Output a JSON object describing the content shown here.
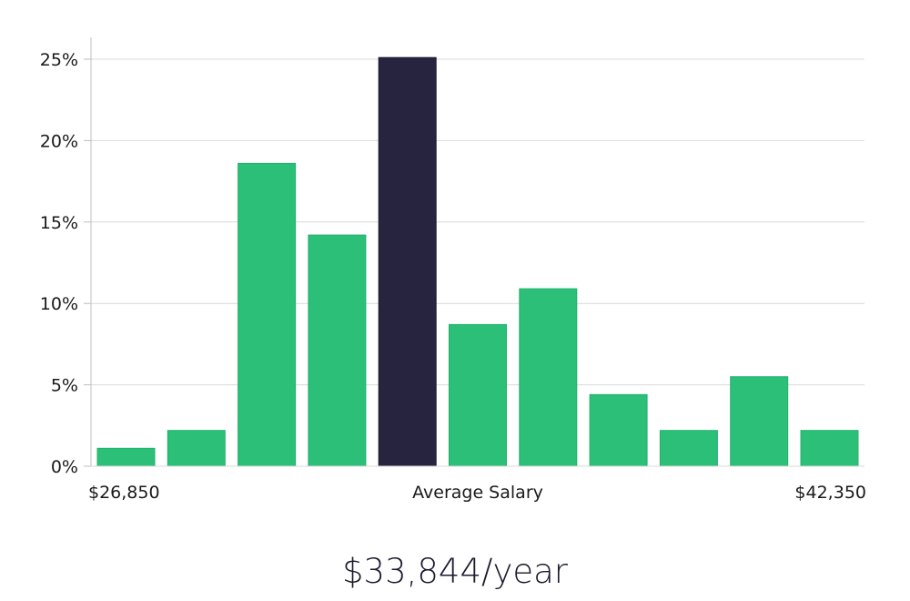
{
  "chart_data": {
    "type": "bar",
    "categories": [
      "1",
      "2",
      "3",
      "4",
      "5",
      "6",
      "7",
      "8",
      "9",
      "10",
      "11"
    ],
    "values": [
      1.1,
      2.2,
      18.6,
      14.2,
      25.1,
      8.7,
      10.9,
      4.4,
      2.2,
      5.5,
      2.2
    ],
    "highlight_index": 4,
    "y_ticks": [
      "0%",
      "5%",
      "10%",
      "15%",
      "20%",
      "25%"
    ],
    "ylim": [
      0,
      26.5
    ],
    "grid": true,
    "x_labels": {
      "left": "$26,850",
      "center": "Average Salary",
      "right": "$42,350"
    },
    "colors": {
      "bar": "#2bbf78",
      "highlight": "#27243f",
      "grid": "#d9d9d9",
      "axis": "#bfbfbf"
    }
  },
  "summary": {
    "average_salary": "$33,844/year"
  }
}
